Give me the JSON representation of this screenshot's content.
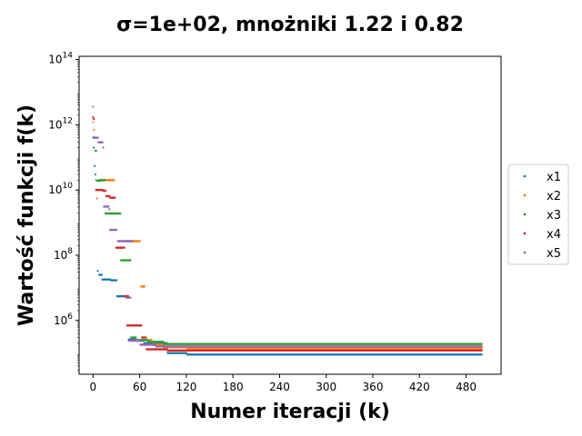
{
  "chart_data": {
    "type": "scatter",
    "title": "σ=1e+02, mnożniki 1.22 i 0.82",
    "xlabel": "Numer iteracji (k)",
    "ylabel": "Wartość funkcji f(k)",
    "xlim": [
      -18,
      525
    ],
    "xticks": [
      0,
      60,
      120,
      180,
      240,
      300,
      360,
      420,
      480
    ],
    "yscale": "log",
    "ylim_exp": [
      4.35,
      14.1
    ],
    "ytick_base": "10",
    "yticks_exp": [
      6,
      8,
      10,
      12,
      14
    ],
    "grid": false,
    "legend_position": "center-right",
    "series": [
      {
        "name": "x1",
        "color": "#1f77b4",
        "segments": [
          {
            "x": [
              0,
              0
            ],
            "y": 400000000000
          },
          {
            "x": [
              1,
              1
            ],
            "y": 200000000000
          },
          {
            "x": [
              2,
              2
            ],
            "y": 55000000000
          },
          {
            "x": [
              3,
              3
            ],
            "y": 30000000000
          },
          {
            "x": [
              4,
              5
            ],
            "y": 20000000000
          },
          {
            "x": [
              6,
              7
            ],
            "y": 33000000
          },
          {
            "x": [
              8,
              11
            ],
            "y": 25000000
          },
          {
            "x": [
              12,
              22
            ],
            "y": 18000000
          },
          {
            "x": [
              23,
              30
            ],
            "y": 17000000
          },
          {
            "x": [
              31,
              45
            ],
            "y": 5500000
          },
          {
            "x": [
              46,
              55
            ],
            "y": 260000
          },
          {
            "x": [
              56,
              65
            ],
            "y": 240000
          },
          {
            "x": [
              66,
              95
            ],
            "y": 200000
          },
          {
            "x": [
              96,
              120
            ],
            "y": 100000
          },
          {
            "x": [
              121,
              500
            ],
            "y": 90000
          }
        ]
      },
      {
        "name": "x2",
        "color": "#ff7f0e",
        "segments": [
          {
            "x": [
              0,
              0
            ],
            "y": 1200000000000
          },
          {
            "x": [
              1,
              1
            ],
            "y": 700000000000
          },
          {
            "x": [
              5,
              5
            ],
            "y": 5500000000
          },
          {
            "x": [
              8,
              27
            ],
            "y": 20000000000
          },
          {
            "x": [
              42,
              60
            ],
            "y": 270000000
          },
          {
            "x": [
              62,
              66
            ],
            "y": 11000000
          },
          {
            "x": [
              67,
              75
            ],
            "y": 250000
          },
          {
            "x": [
              76,
              90
            ],
            "y": 180000
          },
          {
            "x": [
              91,
              120
            ],
            "y": 150000
          },
          {
            "x": [
              121,
              500
            ],
            "y": 140000
          }
        ]
      },
      {
        "name": "x3",
        "color": "#2ca02c",
        "segments": [
          {
            "x": [
              3,
              3
            ],
            "y": 160000000000
          },
          {
            "x": [
              4,
              5
            ],
            "y": 160000000000
          },
          {
            "x": [
              6,
              8
            ],
            "y": 19000000000
          },
          {
            "x": [
              9,
              15
            ],
            "y": 20000000000
          },
          {
            "x": [
              16,
              35
            ],
            "y": 1900000000
          },
          {
            "x": [
              36,
              48
            ],
            "y": 70000000
          },
          {
            "x": [
              49,
              55
            ],
            "y": 300000
          },
          {
            "x": [
              56,
              70
            ],
            "y": 250000
          },
          {
            "x": [
              71,
              90
            ],
            "y": 220000
          },
          {
            "x": [
              91,
              500
            ],
            "y": 190000
          }
        ]
      },
      {
        "name": "x4",
        "color": "#d62728",
        "segments": [
          {
            "x": [
              0,
              0
            ],
            "y": 1700000000000
          },
          {
            "x": [
              1,
              1
            ],
            "y": 1500000000000
          },
          {
            "x": [
              4,
              12
            ],
            "y": 10000000000
          },
          {
            "x": [
              13,
              16
            ],
            "y": 9500000000
          },
          {
            "x": [
              17,
              21
            ],
            "y": 6500000000
          },
          {
            "x": [
              22,
              28
            ],
            "y": 5800000000
          },
          {
            "x": [
              30,
              40
            ],
            "y": 170000000
          },
          {
            "x": [
              41,
              45
            ],
            "y": 5500000
          },
          {
            "x": [
              44,
              62
            ],
            "y": 700000
          },
          {
            "x": [
              63,
              68
            ],
            "y": 300000
          },
          {
            "x": [
              69,
              95
            ],
            "y": 130000
          },
          {
            "x": [
              96,
              500
            ],
            "y": 120000
          }
        ]
      },
      {
        "name": "x5",
        "color": "#9467bd",
        "segments": [
          {
            "x": [
              0,
              0
            ],
            "y": 3600000000000
          },
          {
            "x": [
              1,
              1
            ],
            "y": 420000000000
          },
          {
            "x": [
              2,
              6
            ],
            "y": 400000000000
          },
          {
            "x": [
              7,
              12
            ],
            "y": 290000000000
          },
          {
            "x": [
              13,
              13
            ],
            "y": 200000000000
          },
          {
            "x": [
              14,
              20
            ],
            "y": 3100000000
          },
          {
            "x": [
              21,
              22
            ],
            "y": 2600000000
          },
          {
            "x": [
              22,
              30
            ],
            "y": 600000000
          },
          {
            "x": [
              32,
              50
            ],
            "y": 270000000
          },
          {
            "x": [
              43,
              48
            ],
            "y": 5000000
          },
          {
            "x": [
              46,
              60
            ],
            "y": 240000
          },
          {
            "x": [
              61,
              80
            ],
            "y": 180000
          },
          {
            "x": [
              81,
              500
            ],
            "y": 160000
          }
        ]
      }
    ]
  }
}
